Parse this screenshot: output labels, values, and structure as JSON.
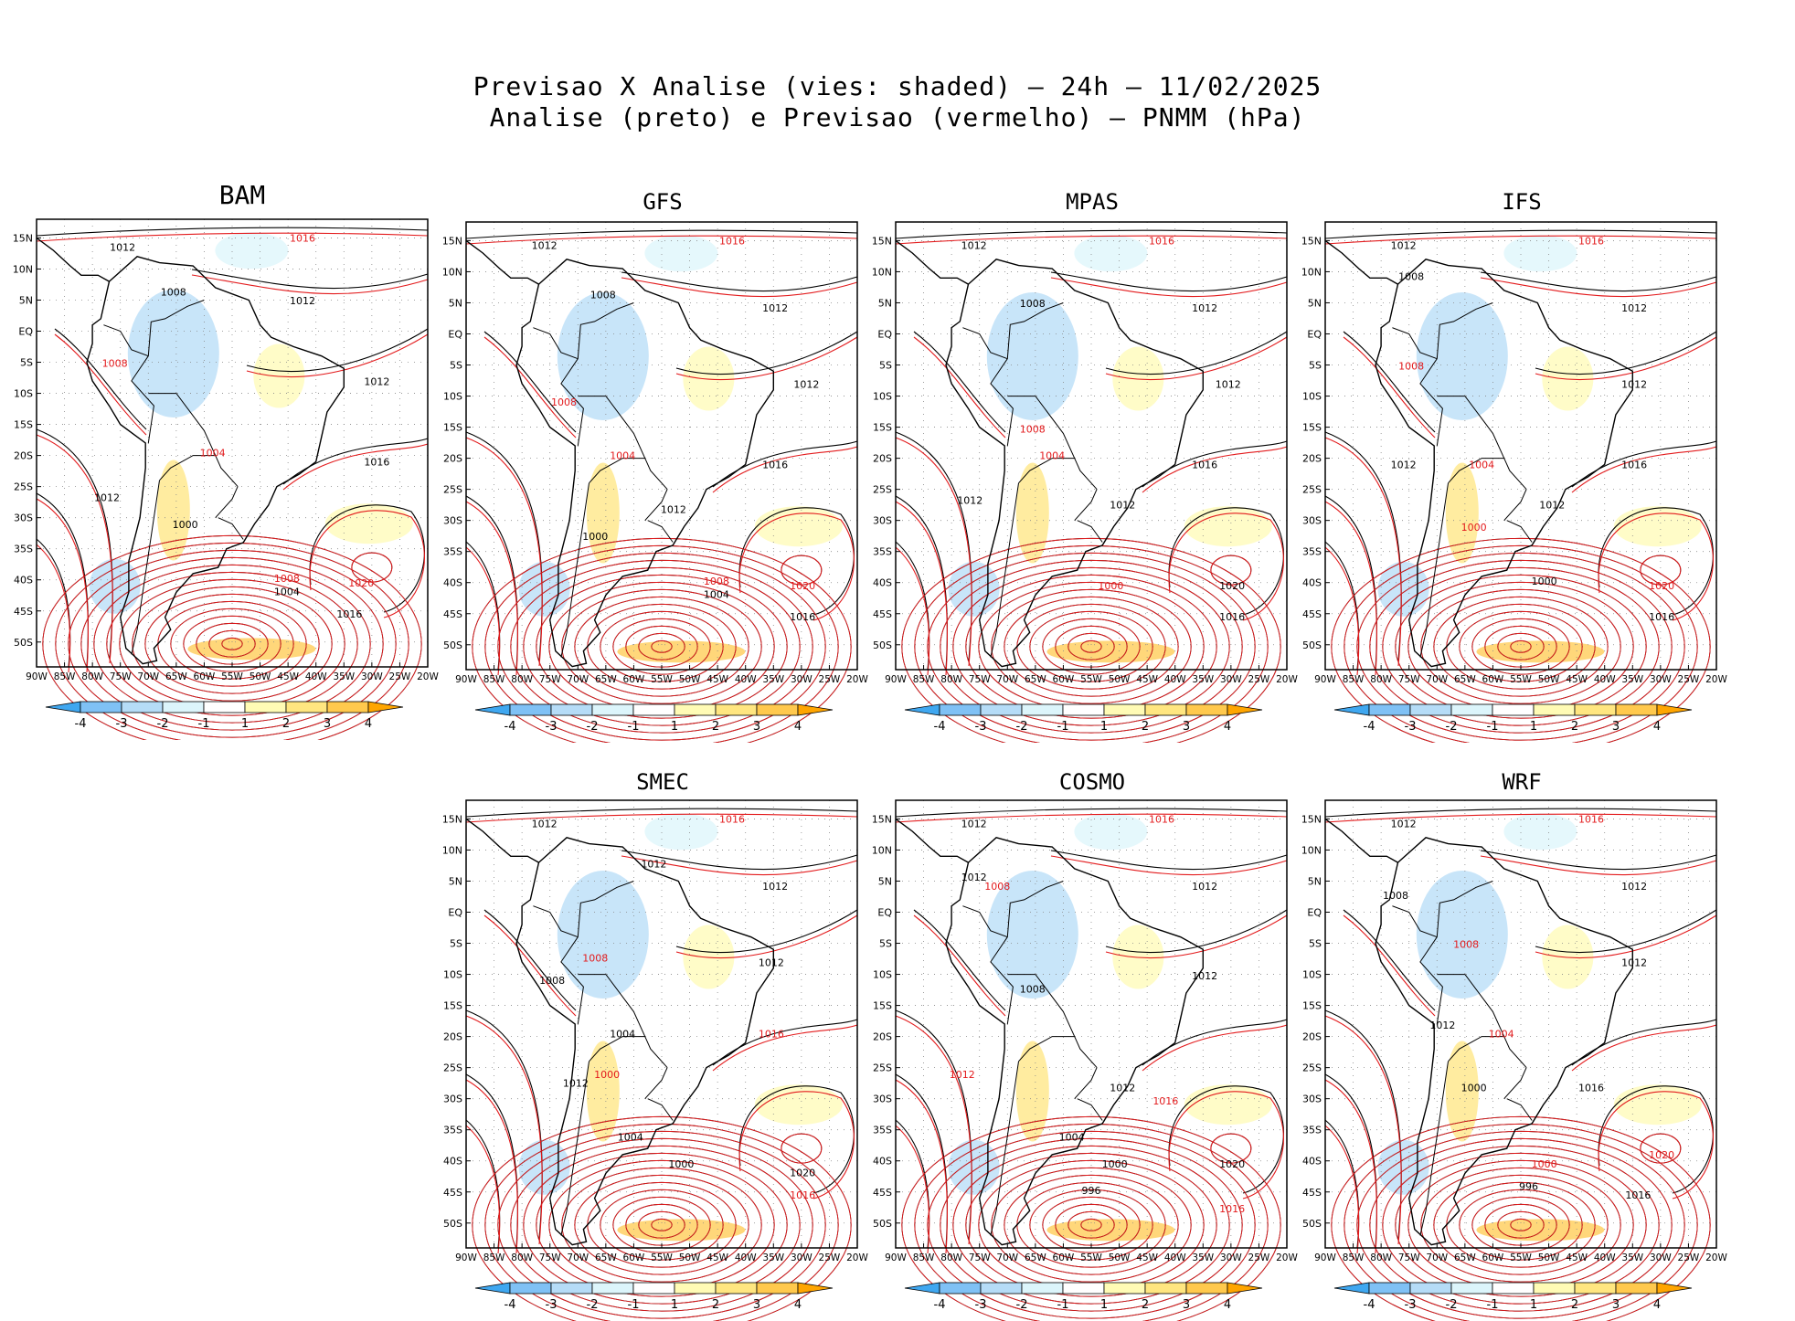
{
  "header": {
    "line1": "Previsao X Analise (vies: shaded) – 24h – 11/02/2025",
    "line2": "Analise (preto) e Previsao (vermelho) – PNMM (hPa)"
  },
  "lat_ticks": [
    "15N",
    "10N",
    "5N",
    "EQ",
    "5S",
    "10S",
    "15S",
    "20S",
    "25S",
    "30S",
    "35S",
    "40S",
    "45S",
    "50S"
  ],
  "lon_ticks": [
    "90W",
    "85W",
    "80W",
    "75W",
    "70W",
    "65W",
    "60W",
    "55W",
    "50W",
    "45W",
    "40W",
    "35W",
    "30W",
    "25W",
    "20W"
  ],
  "colorbar": {
    "labels": [
      "-4",
      "-3",
      "-2",
      "-1",
      "1",
      "2",
      "3",
      "4"
    ],
    "colors": [
      "#3fa7f0",
      "#7fc1f5",
      "#b5dcf7",
      "#dcf5fb",
      "#ffffff",
      "#fffbb5",
      "#ffe680",
      "#ffc94d",
      "#ffa500"
    ]
  },
  "isobar_colors": {
    "analysis": "#000000",
    "forecast": "#e31a1c"
  },
  "panels": [
    {
      "name": "BAM",
      "labels": [
        [
          "1012",
          0.22,
          0.07
        ],
        [
          "1016",
          0.68,
          0.05
        ],
        [
          "1012",
          0.68,
          0.19
        ],
        [
          "1008",
          0.35,
          0.17
        ],
        [
          "1008",
          0.2,
          0.33
        ],
        [
          "1012",
          0.87,
          0.37
        ],
        [
          "1016",
          0.87,
          0.55
        ],
        [
          "1004",
          0.45,
          0.53
        ],
        [
          "1012",
          0.18,
          0.63
        ],
        [
          "1000",
          0.38,
          0.69
        ],
        [
          "1008",
          0.64,
          0.81
        ],
        [
          "1004",
          0.64,
          0.84
        ],
        [
          "1016",
          0.8,
          0.89
        ],
        [
          "1020",
          0.83,
          0.82
        ]
      ]
    },
    {
      "name": "GFS",
      "labels": [
        [
          "1012",
          0.2,
          0.06
        ],
        [
          "1016",
          0.68,
          0.05
        ],
        [
          "1012",
          0.79,
          0.2
        ],
        [
          "1008",
          0.35,
          0.17
        ],
        [
          "1008",
          0.25,
          0.41
        ],
        [
          "1012",
          0.87,
          0.37
        ],
        [
          "1016",
          0.79,
          0.55
        ],
        [
          "1004",
          0.4,
          0.53
        ],
        [
          "1012",
          0.53,
          0.65
        ],
        [
          "1000",
          0.33,
          0.71
        ],
        [
          "1008",
          0.64,
          0.81
        ],
        [
          "1004",
          0.64,
          0.84
        ],
        [
          "1016",
          0.86,
          0.89
        ],
        [
          "1020",
          0.86,
          0.82
        ]
      ]
    },
    {
      "name": "MPAS",
      "labels": [
        [
          "1012",
          0.2,
          0.06
        ],
        [
          "1016",
          0.68,
          0.05
        ],
        [
          "1012",
          0.79,
          0.2
        ],
        [
          "1008",
          0.35,
          0.19
        ],
        [
          "1008",
          0.35,
          0.47
        ],
        [
          "1012",
          0.85,
          0.37
        ],
        [
          "1016",
          0.79,
          0.55
        ],
        [
          "1004",
          0.4,
          0.53
        ],
        [
          "1012",
          0.58,
          0.64
        ],
        [
          "1012",
          0.19,
          0.63
        ],
        [
          "1000",
          0.55,
          0.82
        ],
        [
          "1016",
          0.86,
          0.89
        ],
        [
          "1020",
          0.86,
          0.82
        ]
      ]
    },
    {
      "name": "IFS",
      "labels": [
        [
          "1012",
          0.2,
          0.06
        ],
        [
          "1016",
          0.68,
          0.05
        ],
        [
          "1012",
          0.79,
          0.2
        ],
        [
          "1008",
          0.22,
          0.13
        ],
        [
          "1008",
          0.22,
          0.33
        ],
        [
          "1012",
          0.79,
          0.37
        ],
        [
          "1016",
          0.79,
          0.55
        ],
        [
          "1004",
          0.4,
          0.55
        ],
        [
          "1012",
          0.58,
          0.64
        ],
        [
          "1012",
          0.2,
          0.55
        ],
        [
          "1000",
          0.38,
          0.69
        ],
        [
          "1000",
          0.56,
          0.81
        ],
        [
          "1016",
          0.86,
          0.89
        ],
        [
          "1020",
          0.86,
          0.82
        ]
      ]
    },
    {
      "name": "SMEC",
      "labels": [
        [
          "1012",
          0.2,
          0.06
        ],
        [
          "1016",
          0.68,
          0.05
        ],
        [
          "1012",
          0.79,
          0.2
        ],
        [
          "1012",
          0.48,
          0.15
        ],
        [
          "1008",
          0.33,
          0.36
        ],
        [
          "1008",
          0.22,
          0.41
        ],
        [
          "1012",
          0.78,
          0.37
        ],
        [
          "1016",
          0.78,
          0.53
        ],
        [
          "1004",
          0.4,
          0.53
        ],
        [
          "1012",
          0.28,
          0.64
        ],
        [
          "1000",
          0.36,
          0.62
        ],
        [
          "1004",
          0.42,
          0.76
        ],
        [
          "1000",
          0.55,
          0.82
        ],
        [
          "1016",
          0.86,
          0.89
        ],
        [
          "1020",
          0.86,
          0.84
        ]
      ]
    },
    {
      "name": "COSMO",
      "labels": [
        [
          "1012",
          0.2,
          0.06
        ],
        [
          "1016",
          0.68,
          0.05
        ],
        [
          "1012",
          0.79,
          0.2
        ],
        [
          "1012",
          0.2,
          0.18
        ],
        [
          "1008",
          0.26,
          0.2
        ],
        [
          "1008",
          0.35,
          0.43
        ],
        [
          "1012",
          0.79,
          0.4
        ],
        [
          "1016",
          0.69,
          0.68
        ],
        [
          "1004",
          0.45,
          0.76
        ],
        [
          "1012",
          0.58,
          0.65
        ],
        [
          "1012",
          0.17,
          0.62
        ],
        [
          "1000",
          0.56,
          0.82
        ],
        [
          "996",
          0.5,
          0.88
        ],
        [
          "1016",
          0.86,
          0.92
        ],
        [
          "1020",
          0.86,
          0.82
        ]
      ]
    },
    {
      "name": "WRF",
      "labels": [
        [
          "1012",
          0.2,
          0.06
        ],
        [
          "1016",
          0.68,
          0.05
        ],
        [
          "1012",
          0.79,
          0.2
        ],
        [
          "1008",
          0.18,
          0.22
        ],
        [
          "1008",
          0.36,
          0.33
        ],
        [
          "1012",
          0.79,
          0.37
        ],
        [
          "1016",
          0.68,
          0.65
        ],
        [
          "1004",
          0.45,
          0.53
        ],
        [
          "1012",
          0.3,
          0.51
        ],
        [
          "1000",
          0.38,
          0.65
        ],
        [
          "1000",
          0.56,
          0.82
        ],
        [
          "996",
          0.52,
          0.87
        ],
        [
          "1016",
          0.8,
          0.89
        ],
        [
          "1020",
          0.86,
          0.8
        ]
      ]
    }
  ]
}
